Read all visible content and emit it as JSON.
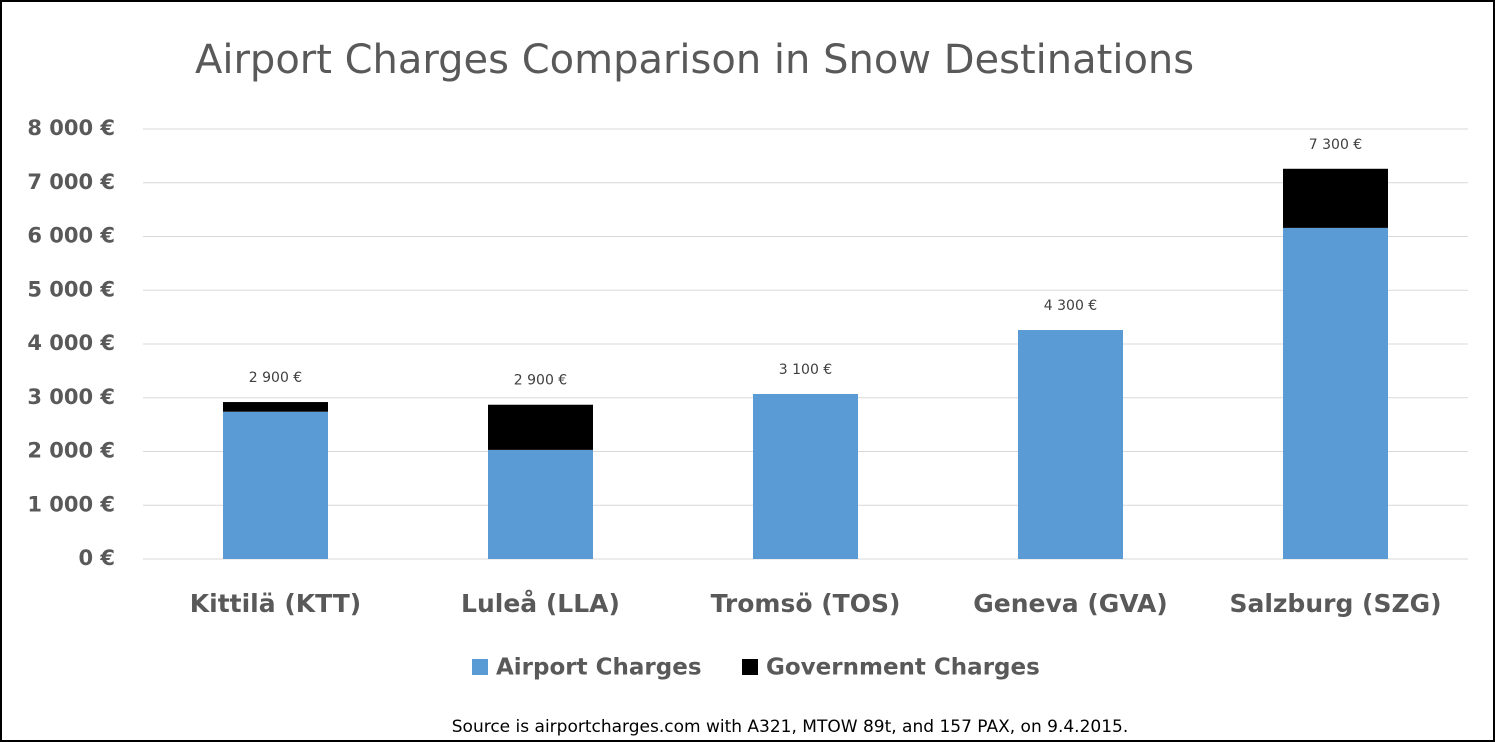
{
  "chart_data": {
    "type": "stacked_bar",
    "title": "Airport Charges Comparison in Snow Destinations",
    "source": "Source is airportcharges.com with A321, MTOW 89t, and 157 PAX, on 9.4.2015.",
    "categories": [
      "Kittilä (KTT)",
      "Luleå (LLA)",
      "Tromsö (TOS)",
      "Geneva (GVA)",
      "Salzburg (SZG)"
    ],
    "series": [
      {
        "name": "Airport Charges",
        "color": "#5b9bd5",
        "values": [
          2740,
          2030,
          3070,
          4260,
          6160
        ]
      },
      {
        "name": "Government Charges",
        "color": "#000000",
        "values": [
          180,
          840,
          0,
          0,
          1100
        ]
      }
    ],
    "total_labels": [
      "2 900 €",
      "2 900 €",
      "3 100 €",
      "4 300 €",
      "7 300 €"
    ],
    "ylim": [
      0,
      8000
    ],
    "yticks": [
      {
        "value": 0,
        "label": "0 €"
      },
      {
        "value": 1000,
        "label": "1 000 €"
      },
      {
        "value": 2000,
        "label": "2 000 €"
      },
      {
        "value": 3000,
        "label": "3 000 €"
      },
      {
        "value": 4000,
        "label": "4 000 €"
      },
      {
        "value": 5000,
        "label": "5 000 €"
      },
      {
        "value": 6000,
        "label": "6 000 €"
      },
      {
        "value": 7000,
        "label": "7 000 €"
      },
      {
        "value": 8000,
        "label": "8 000 €"
      }
    ],
    "grid": true,
    "legend": "bottom"
  }
}
